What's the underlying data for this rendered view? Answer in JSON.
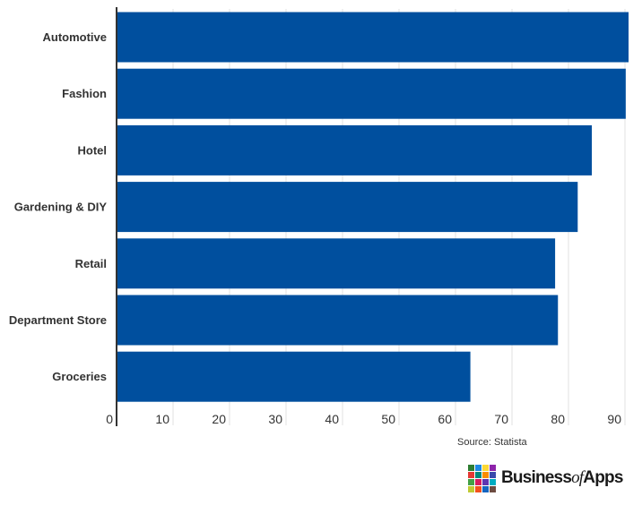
{
  "chart_data": {
    "type": "bar",
    "orientation": "horizontal",
    "categories": [
      "Automotive",
      "Fashion",
      "Hotel",
      "Gardening & DIY",
      "Retail",
      "Department Store",
      "Groceries"
    ],
    "values": [
      90,
      89.5,
      83.5,
      81,
      77,
      77.5,
      62
    ],
    "xlim": [
      0,
      90
    ],
    "xticks": [
      0,
      10,
      20,
      30,
      40,
      50,
      60,
      70,
      80,
      90
    ],
    "grid": true,
    "bar_color": "#004f9e",
    "title": "",
    "xlabel": "",
    "ylabel": ""
  },
  "source": "Source: Statista",
  "logo": {
    "text_main": "Business",
    "text_of": "of",
    "text_end": "Apps",
    "tile_colors": [
      "#2e7d32",
      "#1e88e5",
      "#fdd835",
      "#8e24aa",
      "#e53935",
      "#00897b",
      "#fb8c00",
      "#3949ab",
      "#43a047",
      "#d81b60",
      "#5e35b1",
      "#00acc1",
      "#c0ca33",
      "#f4511e",
      "#1565c0",
      "#6d4c41"
    ]
  }
}
